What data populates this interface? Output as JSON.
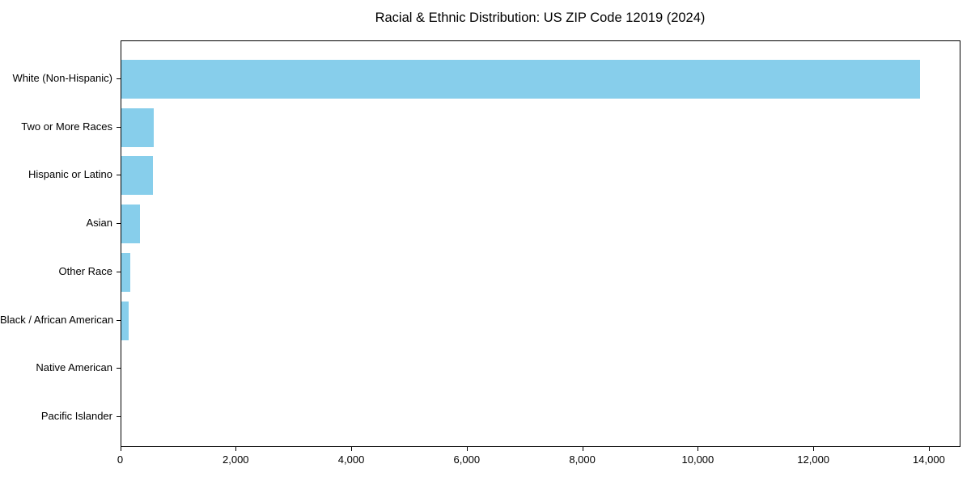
{
  "chart_data": {
    "type": "bar",
    "orientation": "horizontal",
    "title": "Racial & Ethnic Distribution: US ZIP Code 12019 (2024)",
    "categories": [
      "White (Non-Hispanic)",
      "Two or More Races",
      "Hispanic or Latino",
      "Asian",
      "Other Race",
      "Black / African American",
      "Native American",
      "Pacific Islander"
    ],
    "values": [
      13830,
      565,
      550,
      330,
      160,
      135,
      0,
      0
    ],
    "xlabel": "",
    "ylabel": "",
    "xlim": [
      0,
      14540
    ],
    "x_ticks": [
      0,
      2000,
      4000,
      6000,
      8000,
      10000,
      12000,
      14000
    ],
    "x_tick_labels": [
      "0",
      "2,000",
      "4,000",
      "6,000",
      "8,000",
      "10,000",
      "12,000",
      "14,000"
    ],
    "bar_color": "#87CEEB",
    "spine_color": "#000000",
    "grid": false,
    "legend_position": "none"
  }
}
